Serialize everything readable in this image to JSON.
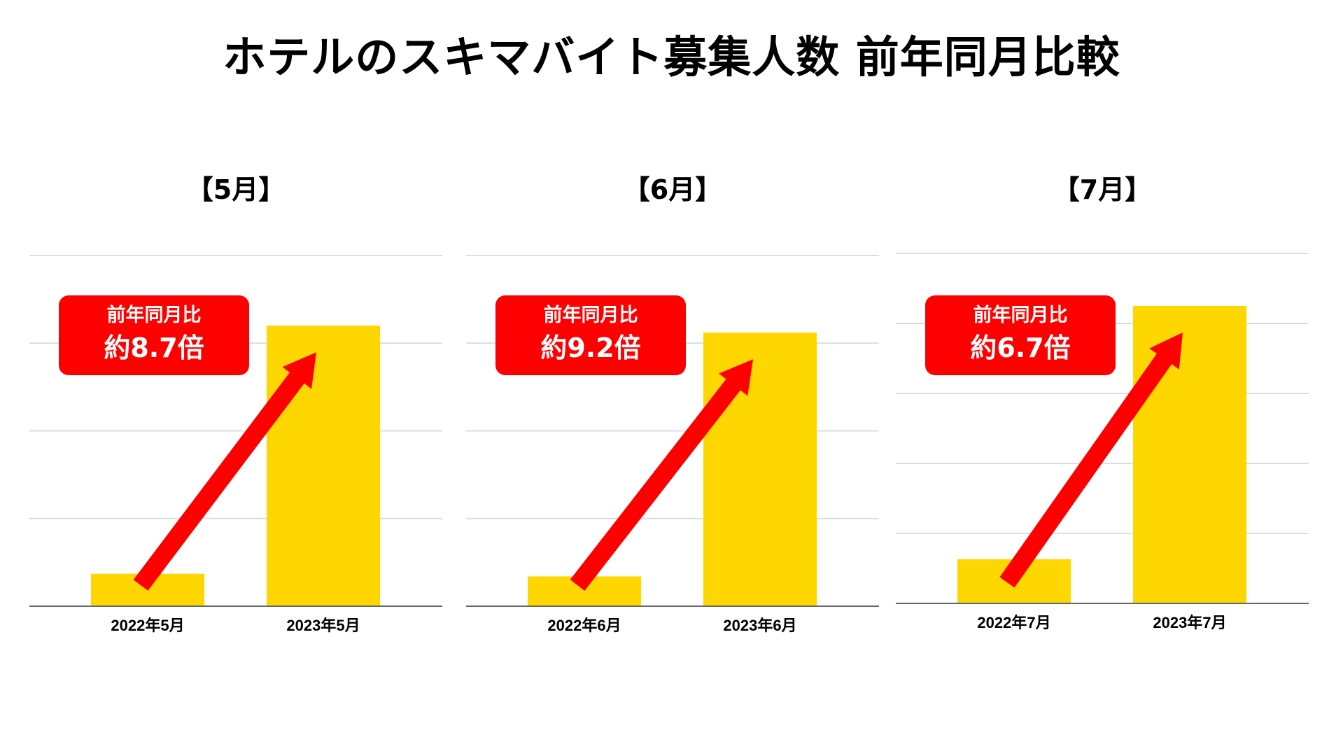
{
  "title": "ホテルのスキマバイト募集人数 前年同月比較",
  "colors": {
    "bar": "#FFD700",
    "arrow": "#FF0000",
    "badge": "#FF0000",
    "gridline": "#DDDDDD",
    "axis": "#666666"
  },
  "panels": [
    {
      "title": "【5月】",
      "badge": {
        "label": "前年同月比",
        "value": "約8.7倍"
      }
    },
    {
      "title": "【6月】",
      "badge": {
        "label": "前年同月比",
        "value": "約9.2倍"
      }
    },
    {
      "title": "【7月】",
      "badge": {
        "label": "前年同月比",
        "value": "約6.7倍"
      }
    }
  ],
  "chart_data": [
    {
      "type": "bar",
      "title": "【5月】",
      "categories": [
        "2022年5月",
        "2023年5月"
      ],
      "values": [
        0.37,
        3.2
      ],
      "ylim": [
        0,
        4
      ],
      "grid": true,
      "annotation": {
        "label": "前年同月比",
        "value": "約8.7倍"
      }
    },
    {
      "type": "bar",
      "title": "【6月】",
      "categories": [
        "2022年6月",
        "2023年6月"
      ],
      "values": [
        0.34,
        3.12
      ],
      "ylim": [
        0,
        4
      ],
      "grid": true,
      "annotation": {
        "label": "前年同月比",
        "value": "約9.2倍"
      }
    },
    {
      "type": "bar",
      "title": "【7月】",
      "categories": [
        "2022年7月",
        "2023年7月"
      ],
      "values": [
        0.63,
        4.25
      ],
      "ylim": [
        0,
        5
      ],
      "grid": true,
      "annotation": {
        "label": "前年同月比",
        "value": "約6.7倍"
      }
    }
  ]
}
